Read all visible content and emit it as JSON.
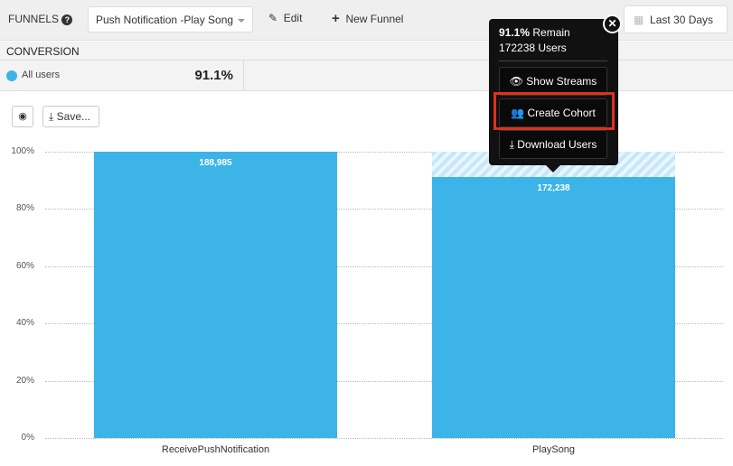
{
  "header": {
    "title": "FUNNELS",
    "funnel_select": "Push Notification -Play Song",
    "edit": "Edit",
    "new_funnel": "New Funnel",
    "date_range": "Last 30 Days"
  },
  "conversion": {
    "heading": "CONVERSION",
    "segment": "All users",
    "value": "91.1%",
    "segment_color": "#3cb4e8"
  },
  "toolbar": {
    "save": "Save..."
  },
  "tooltip": {
    "percent": "91.1%",
    "remain": "Remain",
    "users": "172238 Users",
    "show_streams": "Show Streams",
    "create_cohort": "Create Cohort",
    "download_users": "Download Users",
    "highlight_color": "#e0301e"
  },
  "chart_data": {
    "type": "bar",
    "categories": [
      "ReceivePushNotification",
      "PlaySong"
    ],
    "values": [
      100,
      91.1
    ],
    "counts": [
      "188,985",
      "172,238"
    ],
    "yticks": [
      "0%",
      "20%",
      "40%",
      "60%",
      "80%",
      "100%"
    ],
    "ylim": [
      0,
      100
    ],
    "grid": true,
    "color": "#3cb4e8"
  }
}
